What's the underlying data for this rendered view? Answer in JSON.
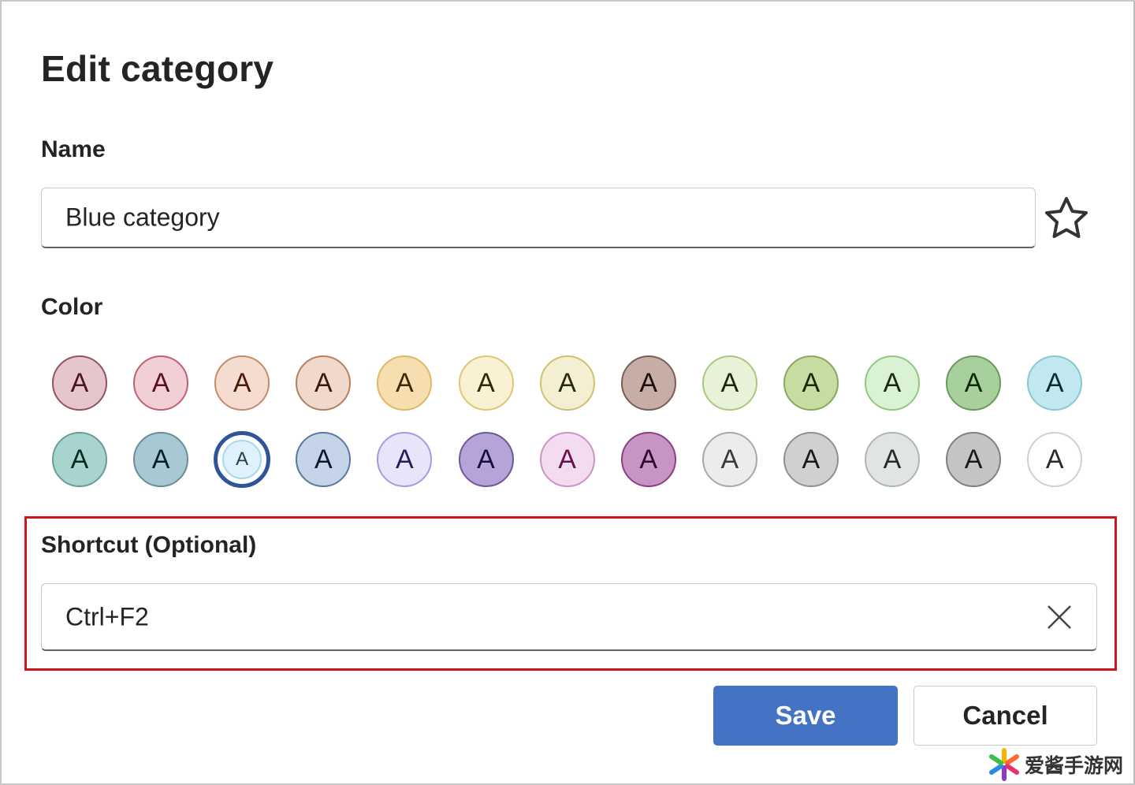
{
  "dialog": {
    "title": "Edit category"
  },
  "name_field": {
    "label": "Name",
    "value": "Blue category",
    "favorite_icon": "star-outline-icon"
  },
  "color": {
    "label": "Color",
    "swatch_letter": "A",
    "selected_index": 15,
    "selected_ring_color": "#2f5597",
    "swatches": [
      {
        "fill": "#e5c6cc",
        "border": "#9a4f5e",
        "text": "#4a1520"
      },
      {
        "fill": "#f0d0d4",
        "border": "#c06070",
        "text": "#5a0f1a"
      },
      {
        "fill": "#f4ddd0",
        "border": "#c88a6a",
        "text": "#4a1a08"
      },
      {
        "fill": "#efd9cc",
        "border": "#b97e60",
        "text": "#3a1a08"
      },
      {
        "fill": "#f6deb0",
        "border": "#e0b860",
        "text": "#3a2a08"
      },
      {
        "fill": "#faf0d4",
        "border": "#dcc870",
        "text": "#2a2a08"
      },
      {
        "fill": "#f4efd2",
        "border": "#d0c070",
        "text": "#2a2a08"
      },
      {
        "fill": "#c6aea6",
        "border": "#7a5e56",
        "text": "#1a100a"
      },
      {
        "fill": "#e8f2d8",
        "border": "#a8c880",
        "text": "#1a2a08"
      },
      {
        "fill": "#c6dca0",
        "border": "#88a860",
        "text": "#1a2a08"
      },
      {
        "fill": "#daf2d4",
        "border": "#90c880",
        "text": "#1a2a10"
      },
      {
        "fill": "#a8d09c",
        "border": "#6a9a5a",
        "text": "#10280a"
      },
      {
        "fill": "#c0e8ee",
        "border": "#88c8d4",
        "text": "#0a2a30"
      },
      {
        "fill": "#a8d4d0",
        "border": "#6a9c98",
        "text": "#0a2a28"
      },
      {
        "fill": "#a8c8d4",
        "border": "#6a8c98",
        "text": "#0a2028"
      },
      {
        "fill": "#dff2fc",
        "border": "#a8d8e8",
        "text": "#2a3a48"
      },
      {
        "fill": "#c6d4e8",
        "border": "#5a78a0",
        "text": "#0a1830"
      },
      {
        "fill": "#e8e4fa",
        "border": "#a898e0",
        "text": "#2a1a60"
      },
      {
        "fill": "#b4a4d8",
        "border": "#6a5a98",
        "text": "#1a0a40"
      },
      {
        "fill": "#f4dcf0",
        "border": "#d090c8",
        "text": "#6a1050"
      },
      {
        "fill": "#c894c4",
        "border": "#8a4080",
        "text": "#2a0a28"
      },
      {
        "fill": "#ececec",
        "border": "#a8a8a8",
        "text": "#3a3a3a"
      },
      {
        "fill": "#d0d0d0",
        "border": "#909090",
        "text": "#1a1a1a"
      },
      {
        "fill": "#e0e4e4",
        "border": "#b0b4b4",
        "text": "#2a2a2a"
      },
      {
        "fill": "#c4c4c4",
        "border": "#808080",
        "text": "#1a1a1a"
      },
      {
        "fill": "#ffffff",
        "border": "#d0d0d0",
        "text": "#2a2a2a"
      }
    ]
  },
  "shortcut": {
    "label": "Shortcut (Optional)",
    "value": "Ctrl+F2",
    "clear_icon": "close-icon",
    "highlight_color": "#d0141c"
  },
  "buttons": {
    "save": "Save",
    "cancel": "Cancel",
    "save_color": "#4472c4"
  },
  "watermark": {
    "text": "爱酱手游网"
  }
}
